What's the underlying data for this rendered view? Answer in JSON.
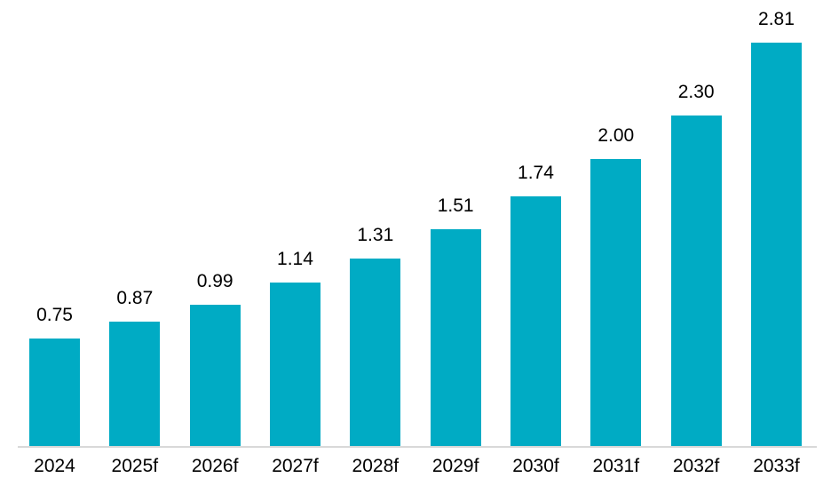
{
  "chart_data": {
    "type": "bar",
    "categories": [
      "2024",
      "2025f",
      "2026f",
      "2027f",
      "2028f",
      "2029f",
      "2030f",
      "2031f",
      "2032f",
      "2033f"
    ],
    "values": [
      0.75,
      0.87,
      0.99,
      1.14,
      1.31,
      1.51,
      1.74,
      2.0,
      2.3,
      2.81
    ],
    "value_labels": [
      "0.75",
      "0.87",
      "0.99",
      "1.14",
      "1.31",
      "1.51",
      "1.74",
      "2.00",
      "2.30",
      "2.81"
    ],
    "title": "",
    "xlabel": "",
    "ylabel": "",
    "ylim": [
      0,
      3
    ],
    "grid": false,
    "legend": false,
    "colors": {
      "bar": "#00ABC4",
      "axis_line": "#D9D9D9",
      "label_text": "#000000",
      "background": "#FFFFFF"
    }
  }
}
